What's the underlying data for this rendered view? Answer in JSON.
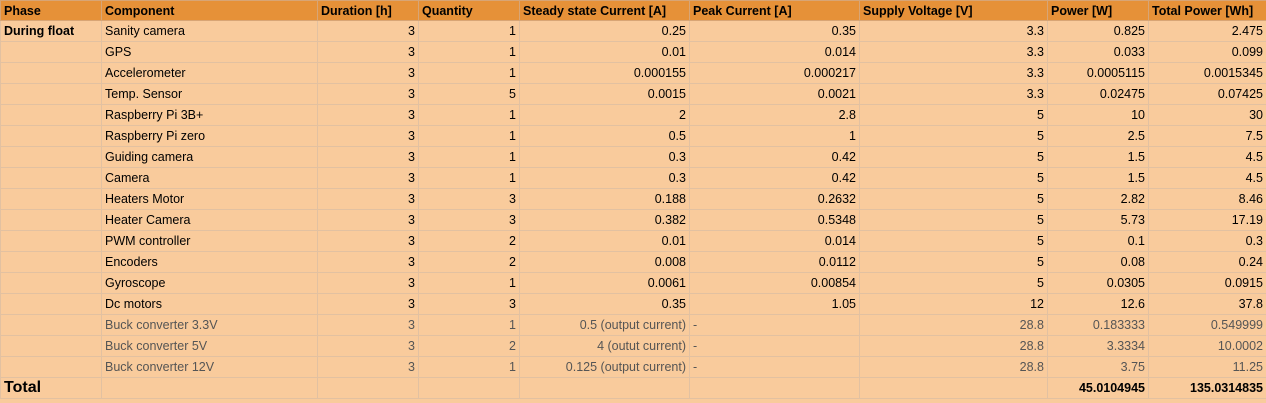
{
  "headers": [
    "Phase",
    "Component",
    "Duration [h]",
    "Quantity",
    "Steady state Current [A]",
    "Peak Current [A]",
    "Supply Voltage [V]",
    "Power [W]",
    "Total Power [Wh]"
  ],
  "rows": [
    {
      "phase": "During float",
      "component": "Sanity camera",
      "duration": "3",
      "quantity": "1",
      "steady": "0.25",
      "peak": "0.35",
      "voltage": "3.3",
      "power": "0.825",
      "total": "2.475"
    },
    {
      "phase": "",
      "component": "GPS",
      "duration": "3",
      "quantity": "1",
      "steady": "0.01",
      "peak": "0.014",
      "voltage": "3.3",
      "power": "0.033",
      "total": "0.099"
    },
    {
      "phase": "",
      "component": "Accelerometer",
      "duration": "3",
      "quantity": "1",
      "steady": "0.000155",
      "peak": "0.000217",
      "voltage": "3.3",
      "power": "0.0005115",
      "total": "0.0015345"
    },
    {
      "phase": "",
      "component": "Temp. Sensor",
      "duration": "3",
      "quantity": "5",
      "steady": "0.0015",
      "peak": "0.0021",
      "voltage": "3.3",
      "power": "0.02475",
      "total": "0.07425"
    },
    {
      "phase": "",
      "component": "Raspberry Pi 3B+",
      "duration": "3",
      "quantity": "1",
      "steady": "2",
      "peak": "2.8",
      "voltage": "5",
      "power": "10",
      "total": "30"
    },
    {
      "phase": "",
      "component": "Raspberry Pi zero",
      "duration": "3",
      "quantity": "1",
      "steady": "0.5",
      "peak": "1",
      "voltage": "5",
      "power": "2.5",
      "total": "7.5"
    },
    {
      "phase": "",
      "component": "Guiding camera",
      "duration": "3",
      "quantity": "1",
      "steady": "0.3",
      "peak": "0.42",
      "voltage": "5",
      "power": "1.5",
      "total": "4.5"
    },
    {
      "phase": "",
      "component": "Camera",
      "duration": "3",
      "quantity": "1",
      "steady": "0.3",
      "peak": "0.42",
      "voltage": "5",
      "power": "1.5",
      "total": "4.5"
    },
    {
      "phase": "",
      "component": "Heaters Motor",
      "duration": "3",
      "quantity": "3",
      "steady": "0.188",
      "peak": "0.2632",
      "voltage": "5",
      "power": "2.82",
      "total": "8.46"
    },
    {
      "phase": "",
      "component": "Heater Camera",
      "duration": "3",
      "quantity": "3",
      "steady": "0.382",
      "peak": "0.5348",
      "voltage": "5",
      "power": "5.73",
      "total": "17.19"
    },
    {
      "phase": "",
      "component": "PWM controller",
      "duration": "3",
      "quantity": "2",
      "steady": "0.01",
      "peak": "0.014",
      "voltage": "5",
      "power": "0.1",
      "total": "0.3"
    },
    {
      "phase": "",
      "component": "Encoders",
      "duration": "3",
      "quantity": "2",
      "steady": "0.008",
      "peak": "0.0112",
      "voltage": "5",
      "power": "0.08",
      "total": "0.24"
    },
    {
      "phase": "",
      "component": "Gyroscope",
      "duration": "3",
      "quantity": "1",
      "steady": "0.0061",
      "peak": "0.00854",
      "voltage": "5",
      "power": "0.0305",
      "total": "0.0915"
    },
    {
      "phase": "",
      "component": "Dc motors",
      "duration": "3",
      "quantity": "3",
      "steady": "0.35",
      "peak": "1.05",
      "voltage": "12",
      "power": "12.6",
      "total": "37.8"
    },
    {
      "phase": "",
      "component": "Buck converter 3.3V",
      "duration": "3",
      "quantity": "1",
      "steady": "0.5 (output current)",
      "peak": "-",
      "voltage": "28.8",
      "power": "0.183333",
      "total": "0.549999",
      "buck": true
    },
    {
      "phase": "",
      "component": "Buck converter 5V",
      "duration": "3",
      "quantity": "2",
      "steady": "4 (outut current)",
      "peak": "-",
      "voltage": "28.8",
      "power": "3.3334",
      "total": "10.0002",
      "buck": true
    },
    {
      "phase": "",
      "component": "Buck converter 12V",
      "duration": "3",
      "quantity": "1",
      "steady": "0.125 (output current)",
      "peak": "-",
      "voltage": "28.8",
      "power": "3.75",
      "total": "11.25",
      "buck": true
    }
  ],
  "totals": {
    "label": "Total",
    "power": "45.0104945",
    "total": "135.0314835"
  }
}
